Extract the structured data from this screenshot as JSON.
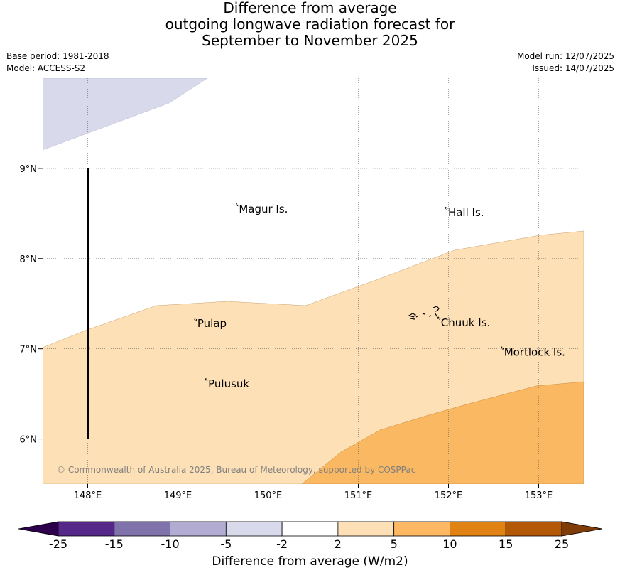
{
  "title": {
    "line1": "Difference from average",
    "line2": "outgoing longwave radiation forecast for",
    "line3": "September to November 2025"
  },
  "meta_left": {
    "base_period": "Base period: 1981-2018",
    "model": "Model: ACCESS-S2"
  },
  "meta_right": {
    "model_run": "Model run: 12/07/2025",
    "issued": "Issued: 14/07/2025"
  },
  "map": {
    "lon_range": [
      147.5,
      153.5
    ],
    "lat_range": [
      5.5,
      10.0
    ],
    "grid": true,
    "lon_ticks": [
      {
        "value": 148,
        "label": "148°E"
      },
      {
        "value": 149,
        "label": "149°E"
      },
      {
        "value": 150,
        "label": "150°E"
      },
      {
        "value": 151,
        "label": "151°E"
      },
      {
        "value": 152,
        "label": "152°E"
      },
      {
        "value": 153,
        "label": "153°E"
      }
    ],
    "lat_ticks": [
      {
        "value": 9,
        "label": "9°N"
      },
      {
        "value": 8,
        "label": "8°N"
      },
      {
        "value": 7,
        "label": "7°N"
      },
      {
        "value": 6,
        "label": "6°N"
      }
    ],
    "places": [
      {
        "name": "Magur Is.",
        "lon": 149.66,
        "lat": 8.55
      },
      {
        "name": "Hall Is.",
        "lon": 151.98,
        "lat": 8.51
      },
      {
        "name": "Pulap",
        "lon": 149.2,
        "lat": 7.28
      },
      {
        "name": "Chuuk Is.",
        "lon": 151.9,
        "lat": 7.29
      },
      {
        "name": "Mortlock Is.",
        "lon": 152.6,
        "lat": 6.96
      },
      {
        "name": "Pulusuk",
        "lon": 149.32,
        "lat": 6.61
      }
    ],
    "copyright": "© Commonwealth of Australia 2025, Bureau of Meteorology, supported by COSPPac"
  },
  "colorbar": {
    "label": "Difference from average (W/m2)",
    "ticks": [
      "-25",
      "-15",
      "-10",
      "-5",
      "-2",
      "2",
      "5",
      "10",
      "15",
      "25"
    ],
    "colors": {
      "below": "#2d004b",
      "bins": [
        "#542788",
        "#8073ac",
        "#b2abd2",
        "#d8daeb",
        "#ffffff",
        "#fee0b6",
        "#fdb863",
        "#e08214",
        "#b35806"
      ],
      "above": "#7f3b08"
    }
  }
}
